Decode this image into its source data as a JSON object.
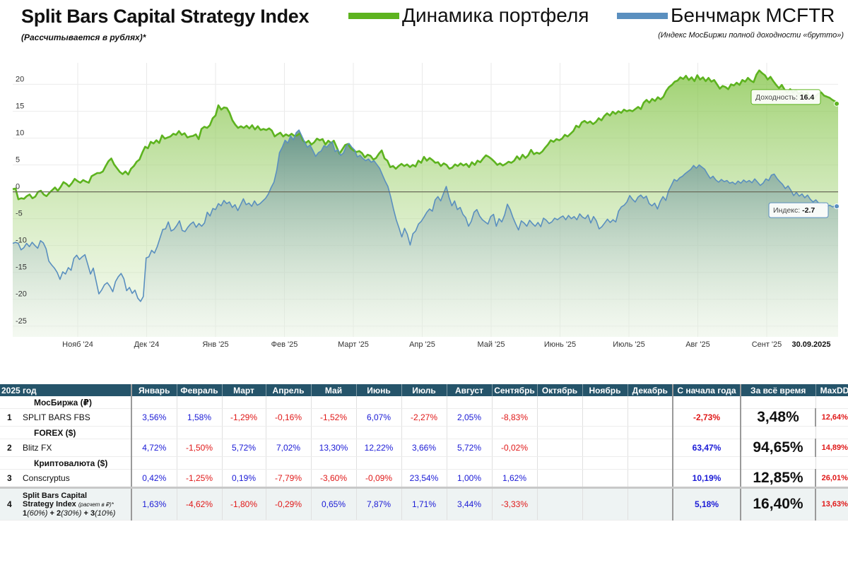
{
  "header": {
    "title": "Split Bars Capital Strategy Index",
    "subtitle": "(Рассчитывается в рублях)*",
    "legend_portfolio": "Динамика портфеля",
    "legend_benchmark": "Бенчмарк MCFTR",
    "benchmark_note": "(Индекс МосБиржи полной доходности «брутто»)",
    "portfolio_color": "#5db31f",
    "benchmark_color": "#5a8fbf"
  },
  "chart_data": {
    "type": "area",
    "x_labels": [
      "Нояб '24",
      "Дек '24",
      "Янв '25",
      "Фев '25",
      "Март '25",
      "Апр '25",
      "Май '25",
      "Июнь '25",
      "Июль '25",
      "Авг '25",
      "Сент '25"
    ],
    "y_ticks": [
      "20",
      "15",
      "10",
      "5",
      "0",
      "-5",
      "-10",
      "-15",
      "-20",
      "-25"
    ],
    "ylim": [
      -27,
      24
    ],
    "end_date": "30.09.2025",
    "series": [
      {
        "name": "Доходность",
        "color": "#5db31f",
        "end_value": "16.4",
        "values": [
          0.5,
          0.6,
          -1.4,
          -1.2,
          -1.3,
          -0.8,
          -0.5,
          -1.2,
          -0.9,
          0.0,
          0.2,
          -0.5,
          -0.8,
          -0.2,
          0.3,
          0.8,
          0.2,
          0.9,
          1.8,
          1.5,
          1.0,
          1.6,
          2.4,
          2.0,
          1.7,
          2.2,
          1.9,
          1.7,
          2.9,
          3.2,
          3.5,
          3.5,
          3.8,
          4.8,
          5.7,
          6.2,
          5.1,
          4.4,
          3.7,
          3.3,
          3.8,
          3.2,
          4.3,
          4.8,
          5.6,
          6.0,
          7.3,
          8.4,
          8.1,
          9.3,
          9.0,
          9.6,
          9.1,
          10.5,
          9.9,
          10.1,
          10.3,
          10.8,
          10.6,
          11.3,
          10.6,
          10.9,
          10.1,
          10.3,
          10.4,
          10.7,
          9.8,
          11.7,
          12.1,
          11.9,
          12.4,
          13.7,
          14.2,
          16.1,
          15.3,
          15.7,
          15.6,
          14.7,
          13.3,
          12.5,
          11.9,
          12.2,
          11.9,
          12.3,
          11.8,
          12.4,
          11.6,
          12.2,
          11.5,
          11.7,
          11.5,
          11.8,
          11.4,
          10.3,
          10.7,
          11.0,
          10.3,
          10.7,
          10.4,
          10.8,
          10.4,
          10.5,
          10.9,
          9.6,
          9.1,
          9.5,
          8.8,
          9.2,
          9.9,
          9.6,
          9.8,
          8.8,
          9.5,
          9.1,
          9.5,
          8.3,
          7.1,
          7.9,
          8.7,
          8.9,
          8.1,
          7.7,
          7.4,
          7.6,
          7.2,
          6.4,
          6.9,
          6.7,
          6.0,
          6.3,
          7.1,
          7.7,
          6.2,
          5.8,
          4.6,
          4.8,
          4.3,
          4.8,
          5.2,
          4.8,
          5.1,
          4.6,
          5.0,
          4.7,
          5.8,
          5.4,
          6.5,
          5.8,
          6.3,
          5.9,
          5.4,
          5.5,
          4.8,
          5.3,
          5.0,
          4.3,
          4.5,
          5.1,
          4.8,
          5.3,
          4.9,
          5.2,
          4.6,
          5.5,
          5.0,
          5.8,
          5.5,
          6.2,
          6.8,
          6.5,
          6.1,
          5.6,
          5.0,
          5.3,
          4.9,
          5.2,
          5.6,
          5.4,
          5.8,
          6.6,
          6.0,
          6.9,
          6.3,
          6.8,
          7.8,
          7.0,
          7.3,
          7.1,
          7.5,
          8.2,
          8.8,
          9.6,
          9.3,
          9.8,
          9.6,
          9.9,
          10.6,
          10.3,
          10.8,
          11.3,
          12.3,
          12.0,
          12.9,
          13.2,
          12.8,
          13.1,
          12.6,
          13.0,
          13.7,
          13.3,
          14.1,
          14.6,
          14.2,
          14.9,
          14.5,
          15.0,
          14.7,
          15.3,
          15.0,
          15.2,
          15.0,
          15.4,
          15.8,
          15.4,
          16.6,
          17.1,
          16.6,
          17.3,
          16.9,
          17.6,
          17.2,
          17.7,
          18.8,
          19.5,
          19.9,
          20.5,
          20.7,
          21.3,
          21.0,
          21.6,
          20.8,
          21.3,
          20.6,
          21.7,
          20.9,
          21.3,
          20.6,
          21.2,
          20.5,
          20.8,
          20.0,
          19.2,
          19.7,
          19.5,
          19.1,
          20.0,
          19.8,
          20.3,
          19.9,
          20.8,
          20.5,
          21.2,
          20.7,
          20.4,
          21.8,
          22.6,
          22.1,
          21.7,
          20.9,
          21.4,
          20.6,
          19.9,
          19.3,
          19.9,
          19.0,
          18.5,
          19.1,
          18.5,
          18.9,
          18.2,
          18.6,
          18.1,
          18.5,
          17.6,
          17.2,
          17.8,
          18.3,
          18.5,
          17.9,
          17.7,
          17.5,
          17.1,
          16.8,
          16.4
        ]
      },
      {
        "name": "Индекс",
        "color": "#5a8fbf",
        "end_value": "-2.7",
        "values": [
          -9.6,
          -9.4,
          -9.6,
          -10.8,
          -10.4,
          -9.6,
          -10.2,
          -9.4,
          -10.0,
          -10.5,
          -9.1,
          -9.5,
          -10.6,
          -12.9,
          -13.6,
          -14.2,
          -15.0,
          -16.3,
          -14.9,
          -15.3,
          -14.1,
          -14.6,
          -12.4,
          -11.8,
          -12.6,
          -12.1,
          -11.7,
          -13.5,
          -15.3,
          -14.2,
          -16.6,
          -19.0,
          -18.3,
          -17.3,
          -16.9,
          -17.6,
          -18.6,
          -16.7,
          -15.8,
          -15.2,
          -16.2,
          -18.4,
          -17.8,
          -18.9,
          -18.3,
          -19.8,
          -20.4,
          -19.5,
          -12.3,
          -12.1,
          -10.9,
          -11.4,
          -10.2,
          -8.6,
          -7.0,
          -6.9,
          -5.6,
          -7.3,
          -7.0,
          -6.3,
          -5.4,
          -7.2,
          -7.4,
          -6.6,
          -6.0,
          -5.6,
          -6.6,
          -5.9,
          -6.4,
          -5.8,
          -3.8,
          -4.5,
          -3.1,
          -3.3,
          -2.2,
          -2.6,
          -1.6,
          -2.2,
          -1.9,
          -2.9,
          -2.4,
          -3.5,
          -2.4,
          -1.3,
          -2.4,
          -2.1,
          -2.7,
          -1.7,
          -2.5,
          -2.2,
          -1.7,
          -1.2,
          -0.4,
          0.8,
          1.8,
          4.0,
          7.3,
          8.3,
          9.6,
          9.1,
          10.4,
          9.7,
          11.0,
          11.5,
          10.4,
          9.3,
          8.3,
          8.7,
          7.7,
          6.6,
          7.3,
          7.6,
          8.6,
          8.3,
          8.9,
          9.3,
          7.5,
          7.8,
          6.8,
          7.2,
          8.5,
          9.0,
          8.3,
          7.8,
          6.5,
          6.8,
          6.2,
          5.8,
          6.1,
          5.5,
          5.8,
          5.1,
          4.4,
          3.2,
          2.0,
          1.0,
          -0.9,
          -3.2,
          -5.2,
          -6.7,
          -8.4,
          -6.8,
          -7.9,
          -9.9,
          -7.8,
          -7.3,
          -6.0,
          -5.5,
          -4.7,
          -3.8,
          -3.2,
          -3.6,
          -1.5,
          -0.9,
          -1.7,
          -0.3,
          1.0,
          -1.0,
          -2.6,
          -1.7,
          -3.3,
          -2.9,
          -4.2,
          -4.8,
          -6.4,
          -5.5,
          -3.8,
          -3.3,
          -4.5,
          -5.2,
          -5.6,
          -6.0,
          -4.6,
          -4.2,
          -6.4,
          -5.0,
          -5.6,
          -4.3,
          -2.3,
          -3.3,
          -4.8,
          -6.0,
          -7.1,
          -5.4,
          -5.8,
          -6.4,
          -5.3,
          -5.9,
          -6.4,
          -5.7,
          -6.5,
          -4.9,
          -5.3,
          -5.9,
          -5.6,
          -4.9,
          -5.2,
          -4.8,
          -4.5,
          -5.2,
          -4.4,
          -5.0,
          -4.6,
          -5.2,
          -4.1,
          -4.7,
          -5.0,
          -4.3,
          -5.8,
          -4.6,
          -5.4,
          -6.9,
          -6.5,
          -5.8,
          -5.1,
          -5.7,
          -5.2,
          -5.6,
          -3.6,
          -2.8,
          -2.5,
          -1.9,
          -0.7,
          -1.4,
          -1.9,
          -1.0,
          -0.6,
          -1.2,
          -0.8,
          -2.2,
          -2.6,
          -2.1,
          -3.2,
          -1.8,
          -0.9,
          -1.6,
          0.2,
          1.2,
          2.3,
          2.0,
          2.6,
          2.9,
          3.4,
          3.8,
          4.2,
          4.9,
          4.4,
          5.0,
          4.6,
          4.2,
          3.3,
          2.5,
          2.9,
          2.2,
          1.8,
          2.3,
          1.9,
          2.1,
          1.6,
          1.8,
          1.4,
          2.0,
          1.6,
          2.2,
          1.8,
          2.1,
          1.7,
          2.4,
          1.8,
          1.2,
          1.6,
          2.4,
          2.1,
          3.1,
          3.3,
          2.5,
          1.9,
          1.4,
          0.6,
          1.1,
          0.3,
          -0.7,
          -0.1,
          -0.8,
          -0.4,
          -1.1,
          -0.6,
          -1.4,
          -1.9,
          -1.5,
          -2.1,
          -2.4,
          -2.2,
          -2.7,
          -2.5,
          -2.8,
          -2.6,
          -2.7
        ]
      }
    ]
  },
  "table": {
    "headers": [
      "2025 год",
      "Январь",
      "Февраль",
      "Март",
      "Апрель",
      "Май",
      "Июнь",
      "Июль",
      "Август",
      "Сентябрь",
      "Октябрь",
      "Ноябрь",
      "Декабрь",
      "С начала года",
      "За всё время",
      "MaxDD"
    ],
    "sections": [
      {
        "title": "МосБиржа (₽)",
        "num": "1",
        "name": "SPLIT BARS FBS",
        "months": [
          "3,56%",
          "1,58%",
          "-1,29%",
          "-0,16%",
          "-1,52%",
          "6,07%",
          "-2,27%",
          "2,05%",
          "-8,83%",
          "",
          "",
          ""
        ],
        "ytd": "-2,73%",
        "all_time": "3,48%",
        "maxdd": "12,64%"
      },
      {
        "title": "FOREX ($)",
        "num": "2",
        "name": "Blitz FX",
        "months": [
          "4,72%",
          "-1,50%",
          "5,72%",
          "7,02%",
          "13,30%",
          "12,22%",
          "3,66%",
          "5,72%",
          "-0,02%",
          "",
          "",
          ""
        ],
        "ytd": "63,47%",
        "all_time": "94,65%",
        "maxdd": "14,89%"
      },
      {
        "title": "Криптовалюта ($)",
        "num": "3",
        "name": "Conscryptus",
        "months": [
          "0,42%",
          "-1,25%",
          "0,19%",
          "-7,79%",
          "-3,60%",
          "-0,09%",
          "23,54%",
          "1,00%",
          "1,62%",
          "",
          "",
          ""
        ],
        "ytd": "10,19%",
        "all_time": "12,85%",
        "maxdd": "26,01%"
      }
    ],
    "final": {
      "num": "4",
      "name_line1": "Split Bars Capital",
      "name_line2": "Strategy Index",
      "name_small": "(расчет в ₽)*",
      "composition_a": "1",
      "composition_a_w": "(60%)",
      "composition_b": " + 2",
      "composition_b_w": "(30%)",
      "composition_c": " + 3",
      "composition_c_w": "(10%)",
      "months": [
        "1,63%",
        "-4,62%",
        "-1,80%",
        "-0,29%",
        "0,65%",
        "7,87%",
        "1,71%",
        "3,44%",
        "-3,33%",
        "",
        "",
        ""
      ],
      "ytd": "5,18%",
      "all_time": "16,40%",
      "maxdd": "13,63%"
    }
  }
}
